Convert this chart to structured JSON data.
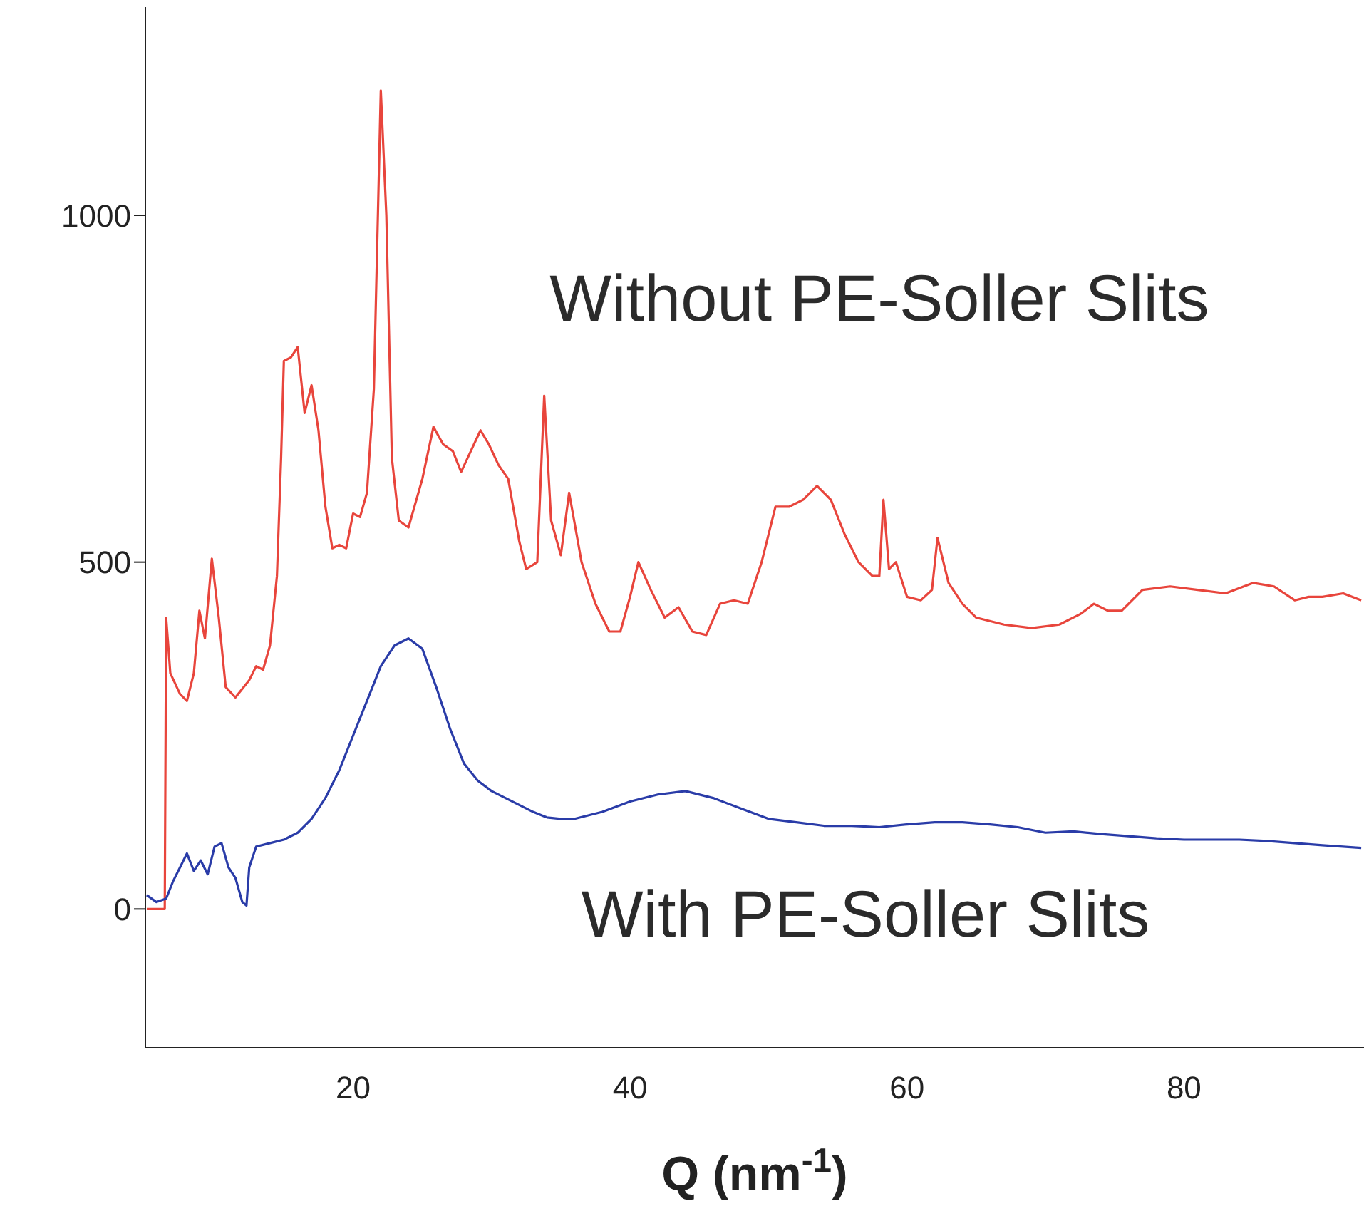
{
  "chart_data": {
    "type": "line",
    "xlabel": "Q (nm$^{-1}$)",
    "xlim": [
      5,
      93
    ],
    "ylim": [
      -200,
      1300
    ],
    "xticks": [
      20,
      40,
      60,
      80
    ],
    "yticks": [
      0,
      500,
      1000
    ],
    "marker": "none",
    "line_style": "solid",
    "series": [
      {
        "name": "Without PE-Soller Slits",
        "color": "#e8453c",
        "x": [
          5.1,
          6.4,
          6.5,
          6.8,
          7.5,
          8.0,
          8.5,
          8.9,
          9.3,
          9.8,
          10.3,
          10.8,
          11.5,
          12.5,
          13.0,
          13.5,
          14.0,
          14.5,
          14.8,
          15.0,
          15.5,
          16.0,
          16.5,
          17.0,
          17.5,
          18.0,
          18.5,
          19.0,
          19.5,
          20.0,
          20.5,
          21.0,
          21.5,
          22.0,
          22.4,
          22.8,
          23.3,
          24.0,
          25.0,
          25.8,
          26.5,
          27.2,
          27.8,
          28.5,
          29.2,
          29.8,
          30.5,
          31.2,
          32.0,
          32.5,
          33.3,
          33.8,
          34.3,
          35.0,
          35.6,
          36.5,
          37.5,
          38.5,
          39.3,
          40.0,
          40.6,
          41.5,
          42.5,
          43.5,
          44.5,
          45.5,
          46.5,
          47.5,
          48.5,
          49.5,
          50.5,
          51.5,
          52.5,
          53.5,
          54.5,
          55.5,
          56.5,
          57.5,
          58.0,
          58.3,
          58.7,
          59.2,
          60.0,
          61.0,
          61.8,
          62.2,
          63.0,
          64.0,
          65.0,
          67.0,
          69.0,
          71.0,
          72.5,
          73.5,
          74.5,
          75.5,
          77.0,
          79.0,
          81.0,
          83.0,
          85.0,
          86.5,
          88.0,
          89.0,
          90.0,
          91.5,
          92.8
        ],
        "values": [
          0,
          0,
          420,
          340,
          310,
          300,
          340,
          430,
          390,
          505,
          420,
          320,
          305,
          330,
          350,
          345,
          380,
          480,
          650,
          790,
          795,
          810,
          715,
          755,
          690,
          580,
          520,
          525,
          520,
          570,
          565,
          600,
          750,
          1180,
          1000,
          650,
          560,
          550,
          620,
          695,
          670,
          660,
          630,
          660,
          690,
          670,
          640,
          620,
          530,
          490,
          500,
          740,
          560,
          510,
          600,
          500,
          440,
          400,
          400,
          450,
          500,
          460,
          420,
          435,
          400,
          395,
          440,
          445,
          440,
          500,
          580,
          580,
          590,
          610,
          590,
          540,
          500,
          480,
          480,
          590,
          490,
          500,
          450,
          445,
          460,
          535,
          470,
          440,
          420,
          410,
          405,
          410,
          425,
          440,
          430,
          430,
          460,
          465,
          460,
          455,
          470,
          465,
          445,
          450,
          450,
          455,
          445
        ]
      },
      {
        "name": "With PE-Soller Slits",
        "color": "#2a3ca8",
        "x": [
          5.1,
          5.8,
          6.5,
          7.0,
          7.5,
          8.0,
          8.5,
          9.0,
          9.5,
          10.0,
          10.5,
          11.0,
          11.5,
          12.0,
          12.3,
          12.5,
          13.0,
          14.0,
          15.0,
          16.0,
          17.0,
          18.0,
          19.0,
          20.0,
          21.0,
          22.0,
          23.0,
          24.0,
          25.0,
          26.0,
          27.0,
          28.0,
          29.0,
          30.0,
          31.0,
          32.0,
          33.0,
          34.0,
          35.0,
          36.0,
          38.0,
          40.0,
          42.0,
          44.0,
          46.0,
          48.0,
          50.0,
          52.0,
          54.0,
          56.0,
          58.0,
          60.0,
          62.0,
          64.0,
          66.0,
          68.0,
          70.0,
          72.0,
          74.0,
          76.0,
          78.0,
          80.0,
          82.0,
          84.0,
          86.0,
          88.0,
          90.0,
          92.8
        ],
        "values": [
          20,
          10,
          15,
          40,
          60,
          80,
          55,
          70,
          50,
          90,
          95,
          60,
          45,
          10,
          5,
          60,
          90,
          95,
          100,
          110,
          130,
          160,
          200,
          250,
          300,
          350,
          380,
          390,
          375,
          320,
          260,
          210,
          185,
          170,
          160,
          150,
          140,
          132,
          130,
          130,
          140,
          155,
          165,
          170,
          160,
          145,
          130,
          125,
          120,
          120,
          118,
          122,
          125,
          125,
          122,
          118,
          110,
          112,
          108,
          105,
          102,
          100,
          100,
          100,
          98,
          95,
          92,
          88
        ]
      }
    ]
  }
}
